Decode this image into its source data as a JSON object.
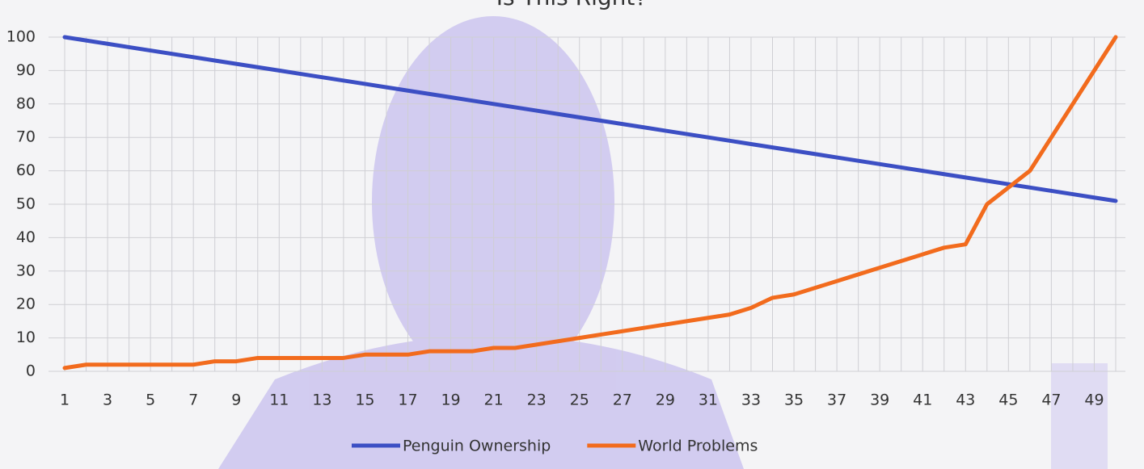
{
  "chart_data": {
    "type": "line",
    "title": "Is This Right?",
    "categories": [
      "1",
      null,
      "3",
      null,
      "5",
      null,
      "7",
      null,
      "9",
      null,
      "11",
      null,
      "13",
      null,
      "15",
      null,
      "17",
      null,
      "19",
      null,
      "21",
      null,
      "23",
      null,
      "25",
      null,
      "27",
      null,
      "29",
      null,
      "31",
      null,
      "33",
      null,
      "35",
      null,
      "37",
      null,
      "39",
      null,
      "41",
      null,
      "43",
      null,
      "45",
      null,
      "47",
      null,
      "49",
      null
    ],
    "series": [
      {
        "name": "Penguin Ownership",
        "color": "#3c4fc4",
        "values": [
          100,
          99,
          98,
          97,
          96,
          95,
          94,
          93,
          92,
          91,
          90,
          89,
          88,
          87,
          86,
          85,
          84,
          83,
          82,
          81,
          80,
          79,
          78,
          77,
          76,
          75,
          74,
          73,
          72,
          71,
          70,
          69,
          68,
          67,
          66,
          65,
          64,
          63,
          62,
          61,
          60,
          59,
          58,
          57,
          56,
          55,
          54,
          53,
          52,
          51
        ]
      },
      {
        "name": "World Problems",
        "color": "#f26b1d",
        "values": [
          1,
          2,
          2,
          2,
          2,
          2,
          2,
          3,
          3,
          4,
          4,
          4,
          4,
          4,
          5,
          5,
          5,
          6,
          6,
          6,
          7,
          7,
          8,
          9,
          10,
          11,
          12,
          13,
          14,
          15,
          16,
          17,
          19,
          22,
          23,
          25,
          27,
          29,
          31,
          33,
          35,
          37,
          38,
          50,
          55,
          60,
          70,
          80,
          90,
          100
        ]
      }
    ],
    "ylim": [
      0,
      100
    ],
    "yticks": [
      0,
      10,
      20,
      30,
      40,
      50,
      60,
      70,
      80,
      90,
      100
    ],
    "grid": true,
    "legend": "bottom"
  }
}
